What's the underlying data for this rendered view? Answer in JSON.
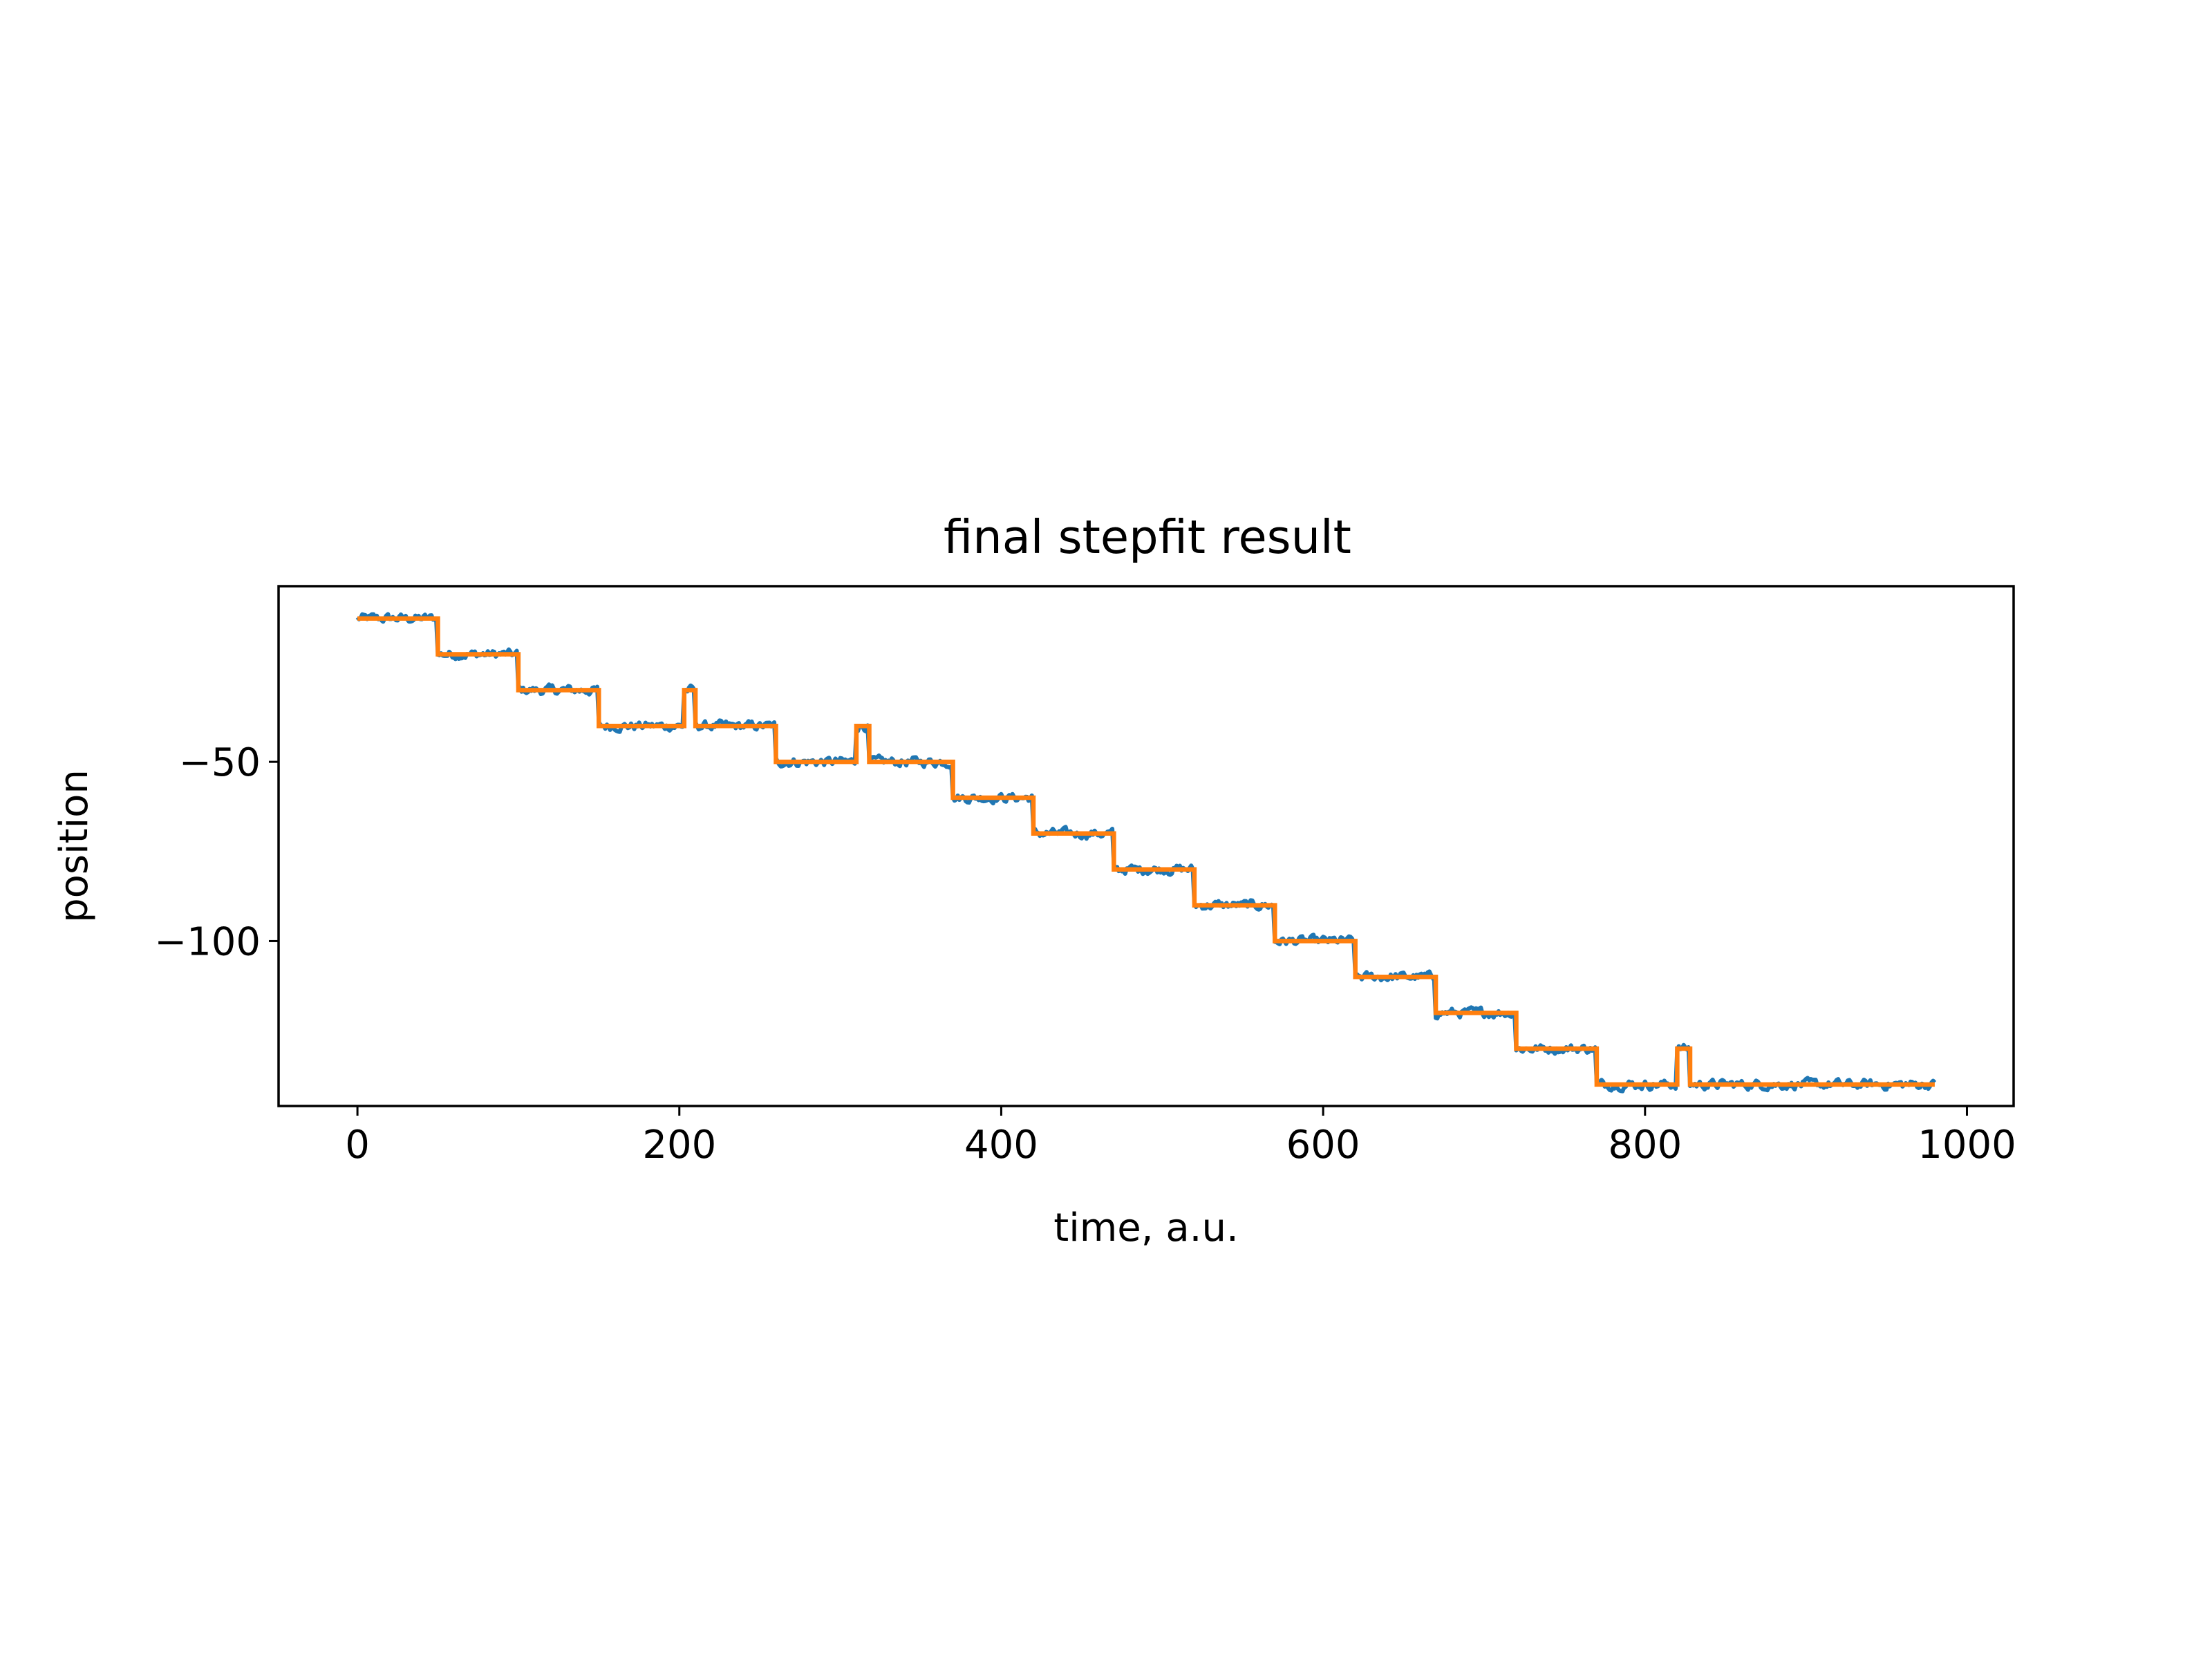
{
  "chart_data": {
    "type": "line",
    "title": "final stepfit result",
    "xlabel": "time, a.u.",
    "ylabel": "position",
    "xlim": [
      -49,
      1029
    ],
    "ylim": [
      -146,
      -1
    ],
    "xticks": [
      {
        "value": 0,
        "label": "0"
      },
      {
        "value": 200,
        "label": "200"
      },
      {
        "value": 400,
        "label": "400"
      },
      {
        "value": 600,
        "label": "600"
      },
      {
        "value": 800,
        "label": "800"
      },
      {
        "value": 1000,
        "label": "1000"
      }
    ],
    "yticks": [
      {
        "value": -50,
        "label": "−50"
      },
      {
        "value": -100,
        "label": "−100"
      }
    ],
    "grid": false,
    "legend": "none",
    "series": [
      {
        "role": "data",
        "color": "#1f77b4",
        "noise_amplitude": 1.3,
        "x_start": 0,
        "x_end": 980,
        "levels": [
          {
            "x0": 0,
            "x1": 50,
            "y": -10
          },
          {
            "x0": 50,
            "x1": 100,
            "y": -20
          },
          {
            "x0": 100,
            "x1": 150,
            "y": -30
          },
          {
            "x0": 150,
            "x1": 203,
            "y": -40
          },
          {
            "x0": 203,
            "x1": 210,
            "y": -30
          },
          {
            "x0": 210,
            "x1": 260,
            "y": -40
          },
          {
            "x0": 260,
            "x1": 310,
            "y": -50
          },
          {
            "x0": 310,
            "x1": 318,
            "y": -40
          },
          {
            "x0": 318,
            "x1": 370,
            "y": -50
          },
          {
            "x0": 370,
            "x1": 420,
            "y": -60
          },
          {
            "x0": 420,
            "x1": 470,
            "y": -70
          },
          {
            "x0": 470,
            "x1": 520,
            "y": -80
          },
          {
            "x0": 520,
            "x1": 570,
            "y": -90
          },
          {
            "x0": 570,
            "x1": 620,
            "y": -100
          },
          {
            "x0": 620,
            "x1": 670,
            "y": -110
          },
          {
            "x0": 670,
            "x1": 720,
            "y": -120
          },
          {
            "x0": 720,
            "x1": 770,
            "y": -130
          },
          {
            "x0": 770,
            "x1": 820,
            "y": -140
          },
          {
            "x0": 820,
            "x1": 828,
            "y": -130
          },
          {
            "x0": 828,
            "x1": 980,
            "y": -140
          }
        ]
      },
      {
        "role": "fit",
        "color": "#ff7f0e",
        "levels": [
          {
            "x0": 0,
            "x1": 50,
            "y": -10
          },
          {
            "x0": 50,
            "x1": 100,
            "y": -20
          },
          {
            "x0": 100,
            "x1": 150,
            "y": -30
          },
          {
            "x0": 150,
            "x1": 203,
            "y": -40
          },
          {
            "x0": 203,
            "x1": 210,
            "y": -30
          },
          {
            "x0": 210,
            "x1": 260,
            "y": -40
          },
          {
            "x0": 260,
            "x1": 310,
            "y": -50
          },
          {
            "x0": 310,
            "x1": 318,
            "y": -40
          },
          {
            "x0": 318,
            "x1": 370,
            "y": -50
          },
          {
            "x0": 370,
            "x1": 420,
            "y": -60
          },
          {
            "x0": 420,
            "x1": 470,
            "y": -70
          },
          {
            "x0": 470,
            "x1": 520,
            "y": -80
          },
          {
            "x0": 520,
            "x1": 570,
            "y": -90
          },
          {
            "x0": 570,
            "x1": 620,
            "y": -100
          },
          {
            "x0": 620,
            "x1": 670,
            "y": -110
          },
          {
            "x0": 670,
            "x1": 720,
            "y": -120
          },
          {
            "x0": 720,
            "x1": 770,
            "y": -130
          },
          {
            "x0": 770,
            "x1": 820,
            "y": -140
          },
          {
            "x0": 820,
            "x1": 828,
            "y": -130
          },
          {
            "x0": 828,
            "x1": 980,
            "y": -140
          }
        ]
      }
    ]
  }
}
